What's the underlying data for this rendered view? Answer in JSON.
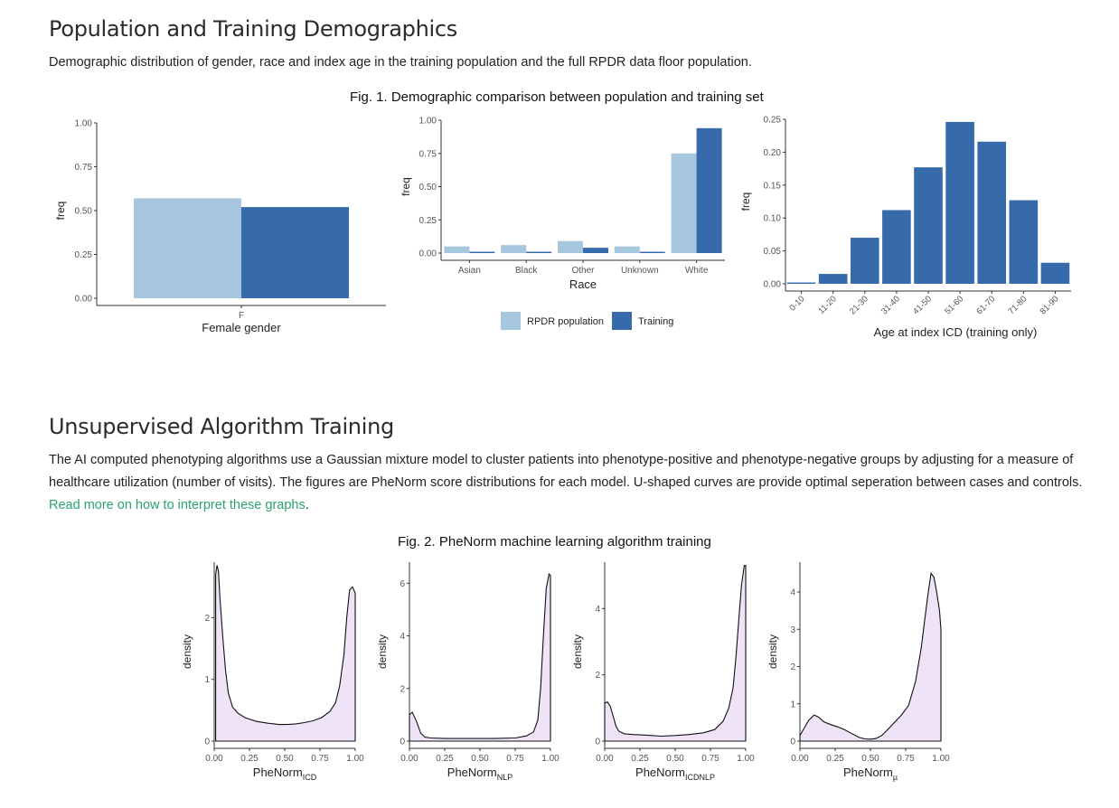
{
  "section1": {
    "heading": "Population and Training Demographics",
    "description": "Demographic distribution of gender, race and index age in the training population and the full RPDR data floor population.",
    "figure_title": "Fig. 1. Demographic comparison between population and training set"
  },
  "section2": {
    "heading": "Unsupervised Algorithm Training",
    "description": "The AI computed phenotyping algorithms use a Gaussian mixture model to cluster patients into phenotype-positive and phenotype-negative groups by adjusting for a measure of healthcare utilization (number of visits). The figures are PheNorm score distributions for each model. U-shaped curves are provide optimal seperation between cases and controls.",
    "link_text": "Read more on how to interpret these graphs",
    "after_link": ".",
    "figure_title": "Fig. 2. PheNorm machine learning algorithm training"
  },
  "colors": {
    "population": "#a6c7dd",
    "training": "#366aaa",
    "density_fill": "#efe3f8",
    "link": "#2ba36c"
  },
  "chart_data": [
    {
      "type": "bar",
      "xlabel": "Female gender",
      "ylabel": "freq",
      "categories": [
        "F"
      ],
      "ylim": [
        0,
        1
      ],
      "yticks": [
        "0.00",
        "0.25",
        "0.50",
        "0.75",
        "1.00"
      ],
      "series": [
        {
          "name": "RPDR population",
          "values": [
            0.57
          ]
        },
        {
          "name": "Training",
          "values": [
            0.52
          ]
        }
      ]
    },
    {
      "type": "bar",
      "xlabel": "Race",
      "ylabel": "freq",
      "categories": [
        "Asian",
        "Black",
        "Other",
        "Unknown",
        "White"
      ],
      "ylim": [
        0,
        1
      ],
      "yticks": [
        "0.00",
        "0.25",
        "0.50",
        "0.75",
        "1.00"
      ],
      "series": [
        {
          "name": "RPDR population",
          "values": [
            0.05,
            0.06,
            0.09,
            0.05,
            0.75
          ]
        },
        {
          "name": "Training",
          "values": [
            0.01,
            0.01,
            0.04,
            0.01,
            0.94
          ]
        }
      ],
      "legend": {
        "position": "bottom",
        "entries": [
          "RPDR population",
          "Training"
        ]
      }
    },
    {
      "type": "bar",
      "xlabel": "Age at index ICD (training only)",
      "ylabel": "freq",
      "categories": [
        "0-10",
        "11-20",
        "21-30",
        "31-40",
        "41-50",
        "51-60",
        "61-70",
        "71-80",
        "81-90"
      ],
      "values": [
        0.002,
        0.015,
        0.07,
        0.112,
        0.177,
        0.246,
        0.216,
        0.127,
        0.032
      ],
      "ylim": [
        0,
        0.25
      ],
      "yticks": [
        "0.00",
        "0.05",
        "0.10",
        "0.15",
        "0.20",
        "0.25"
      ]
    },
    {
      "type": "area",
      "xlabel": "PheNorm",
      "xlabel_sub": "ICD",
      "ylabel": "density",
      "xticks": [
        "0.00",
        "0.25",
        "0.50",
        "0.75",
        "1.00"
      ],
      "yticks": [
        "0",
        "1",
        "2"
      ],
      "ylim": [
        0,
        2.9
      ],
      "x": [
        0.01,
        0.02,
        0.03,
        0.04,
        0.06,
        0.08,
        0.1,
        0.13,
        0.17,
        0.22,
        0.3,
        0.38,
        0.46,
        0.52,
        0.58,
        0.64,
        0.7,
        0.76,
        0.82,
        0.86,
        0.89,
        0.92,
        0.94,
        0.96,
        0.98,
        1.0
      ],
      "y": [
        2.7,
        2.85,
        2.75,
        2.35,
        1.7,
        1.15,
        0.78,
        0.55,
        0.45,
        0.38,
        0.32,
        0.29,
        0.27,
        0.27,
        0.28,
        0.3,
        0.33,
        0.38,
        0.48,
        0.62,
        0.9,
        1.4,
        2.0,
        2.45,
        2.5,
        2.4
      ]
    },
    {
      "type": "area",
      "xlabel": "PheNorm",
      "xlabel_sub": "NLP",
      "ylabel": "density",
      "xticks": [
        "0.00",
        "0.25",
        "0.50",
        "0.75",
        "1.00"
      ],
      "yticks": [
        "0",
        "2",
        "4",
        "6"
      ],
      "ylim": [
        0,
        6.8
      ],
      "x": [
        0.0,
        0.02,
        0.05,
        0.08,
        0.11,
        0.15,
        0.25,
        0.4,
        0.6,
        0.75,
        0.83,
        0.88,
        0.91,
        0.93,
        0.95,
        0.97,
        0.99,
        1.0
      ],
      "y": [
        1.0,
        1.1,
        0.75,
        0.3,
        0.15,
        0.12,
        0.1,
        0.1,
        0.1,
        0.12,
        0.2,
        0.35,
        0.8,
        2.0,
        4.0,
        5.8,
        6.35,
        6.3
      ]
    },
    {
      "type": "area",
      "xlabel": "PheNorm",
      "xlabel_sub": "ICDNLP",
      "ylabel": "density",
      "xticks": [
        "0.00",
        "0.25",
        "0.50",
        "0.75",
        "1.00"
      ],
      "yticks": [
        "0",
        "2",
        "4"
      ],
      "ylim": [
        0,
        5.4
      ],
      "x": [
        0.0,
        0.02,
        0.04,
        0.06,
        0.08,
        0.1,
        0.14,
        0.2,
        0.3,
        0.4,
        0.5,
        0.6,
        0.7,
        0.78,
        0.84,
        0.88,
        0.91,
        0.93,
        0.95,
        0.97,
        0.99,
        1.0
      ],
      "y": [
        1.15,
        1.18,
        1.05,
        0.75,
        0.45,
        0.3,
        0.22,
        0.2,
        0.18,
        0.15,
        0.17,
        0.2,
        0.25,
        0.35,
        0.6,
        1.0,
        1.6,
        2.5,
        3.6,
        4.7,
        5.3,
        5.3
      ]
    },
    {
      "type": "area",
      "xlabel": "PheNorm",
      "xlabel_sub": "µ",
      "ylabel": "density",
      "xticks": [
        "0.00",
        "0.25",
        "0.50",
        "0.75",
        "1.00"
      ],
      "yticks": [
        "0",
        "1",
        "2",
        "3",
        "4"
      ],
      "ylim": [
        0,
        4.8
      ],
      "x": [
        0.0,
        0.03,
        0.06,
        0.1,
        0.13,
        0.17,
        0.22,
        0.27,
        0.32,
        0.37,
        0.42,
        0.46,
        0.5,
        0.54,
        0.58,
        0.62,
        0.67,
        0.72,
        0.77,
        0.82,
        0.86,
        0.89,
        0.91,
        0.93,
        0.95,
        0.97,
        0.99,
        1.0
      ],
      "y": [
        0.15,
        0.35,
        0.55,
        0.7,
        0.65,
        0.52,
        0.44,
        0.38,
        0.3,
        0.2,
        0.1,
        0.06,
        0.05,
        0.07,
        0.15,
        0.3,
        0.5,
        0.7,
        0.95,
        1.6,
        2.5,
        3.4,
        4.0,
        4.5,
        4.4,
        4.0,
        3.5,
        3.0
      ]
    }
  ]
}
